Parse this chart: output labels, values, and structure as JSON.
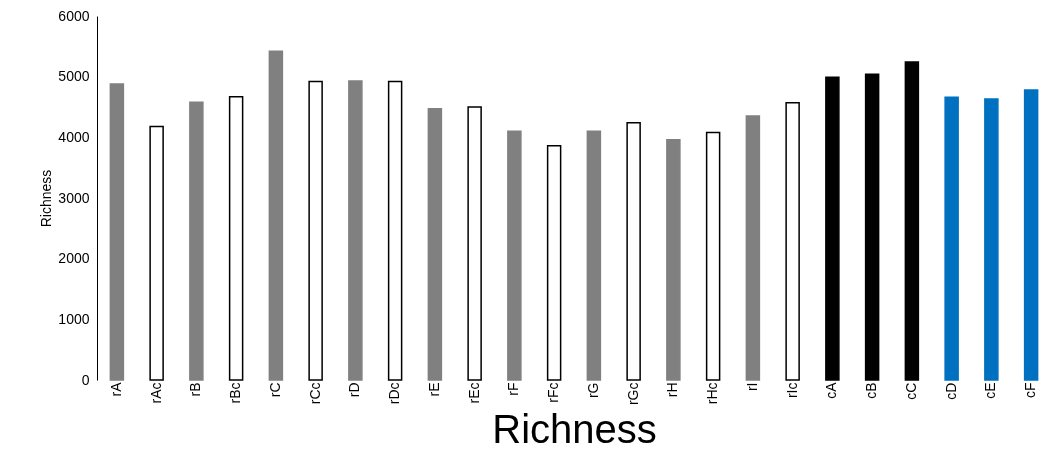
{
  "chart_data": {
    "type": "bar",
    "xlabel": "Richness",
    "ylabel": "Richness",
    "categories": [
      "rA",
      "rAc",
      "rB",
      "rBc",
      "rC",
      "rCc",
      "rD",
      "rDc",
      "rE",
      "rEc",
      "rF",
      "rFc",
      "rG",
      "rGc",
      "rH",
      "rHc",
      "rI",
      "rIc",
      "cA",
      "cB",
      "cC",
      "cD",
      "cE",
      "cF"
    ],
    "values": [
      4880,
      4180,
      4580,
      4670,
      5420,
      4920,
      4930,
      4920,
      4470,
      4500,
      4100,
      3860,
      4100,
      4240,
      3960,
      4080,
      4350,
      4570,
      4990,
      5040,
      5240,
      4660,
      4630,
      4780
    ],
    "colors": [
      "#808080",
      "#ffffff",
      "#808080",
      "#ffffff",
      "#808080",
      "#ffffff",
      "#808080",
      "#ffffff",
      "#808080",
      "#ffffff",
      "#808080",
      "#ffffff",
      "#808080",
      "#ffffff",
      "#808080",
      "#ffffff",
      "#808080",
      "#ffffff",
      "#000000",
      "#000000",
      "#000000",
      "#0070c0",
      "#0070c0",
      "#0070c0"
    ],
    "ylim": [
      0,
      6000
    ],
    "yticks": [
      0,
      1000,
      2000,
      3000,
      4000,
      5000,
      6000
    ],
    "grid": false
  }
}
